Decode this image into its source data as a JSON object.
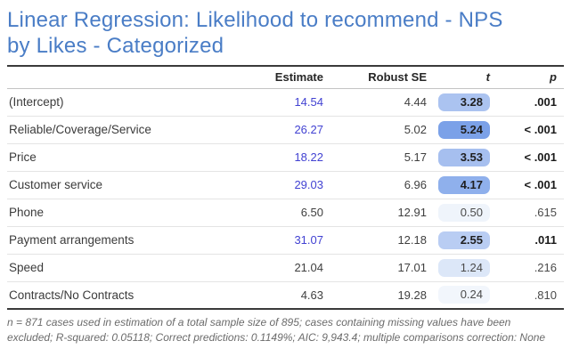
{
  "colors": {
    "title_blue": "#4a7dc6",
    "estimate_blue": "#4242d2",
    "rule_dark": "#3a3a3a",
    "rule_header": "#c4c4c4",
    "rule_row": "#e4e4e4"
  },
  "title": {
    "line1": "Linear Regression: Likelihood to recommend - NPS",
    "line2": "by Likes - Categorized"
  },
  "table": {
    "headers": {
      "estimate": "Estimate",
      "robust_se": "Robust SE",
      "t": "t",
      "p": "p"
    },
    "rows": [
      {
        "label": "(Intercept)",
        "estimate": "14.54",
        "estimate_blue": true,
        "robust_se": "4.44",
        "t": "3.28",
        "t_bg": "#abc3f0",
        "p": ".001",
        "significant": true
      },
      {
        "label": "Reliable/Coverage/Service",
        "estimate": "26.27",
        "estimate_blue": true,
        "robust_se": "5.02",
        "t": "5.24",
        "t_bg": "#7ba1e8",
        "p": "< .001",
        "significant": true
      },
      {
        "label": "Price",
        "estimate": "18.22",
        "estimate_blue": true,
        "robust_se": "5.17",
        "t": "3.53",
        "t_bg": "#a6bfef",
        "p": "< .001",
        "significant": true
      },
      {
        "label": "Customer service",
        "estimate": "29.03",
        "estimate_blue": true,
        "robust_se": "6.96",
        "t": "4.17",
        "t_bg": "#8fb0ec",
        "p": "< .001",
        "significant": true
      },
      {
        "label": "Phone",
        "estimate": "6.50",
        "estimate_blue": false,
        "robust_se": "12.91",
        "t": "0.50",
        "t_bg": "#eff4fb",
        "p": ".615",
        "significant": false
      },
      {
        "label": "Payment arrangements",
        "estimate": "31.07",
        "estimate_blue": true,
        "robust_se": "12.18",
        "t": "2.55",
        "t_bg": "#b9cdf3",
        "p": ".011",
        "significant": true
      },
      {
        "label": "Speed",
        "estimate": "21.04",
        "estimate_blue": false,
        "robust_se": "17.01",
        "t": "1.24",
        "t_bg": "#dce7f8",
        "p": ".216",
        "significant": false
      },
      {
        "label": "Contracts/No Contracts",
        "estimate": "4.63",
        "estimate_blue": false,
        "robust_se": "19.28",
        "t": "0.24",
        "t_bg": "#f2f6fc",
        "p": ".810",
        "significant": false
      }
    ]
  },
  "footnote": {
    "line1": "n = 871 cases used in estimation of a total sample size of 895; cases containing missing values have been",
    "line2": "excluded; R-squared: 0.05118; Correct predictions: 0.1149%; AIC: 9,943.4; multiple comparisons correction: None"
  },
  "chart_data": {
    "type": "table",
    "title": "Linear Regression: Likelihood to recommend - NPS by Likes - Categorized",
    "columns": [
      "",
      "Estimate",
      "Robust SE",
      "t",
      "p"
    ],
    "rows": [
      [
        "(Intercept)",
        14.54,
        4.44,
        3.28,
        ".001"
      ],
      [
        "Reliable/Coverage/Service",
        26.27,
        5.02,
        5.24,
        "< .001"
      ],
      [
        "Price",
        18.22,
        5.17,
        3.53,
        "< .001"
      ],
      [
        "Customer service",
        29.03,
        6.96,
        4.17,
        "< .001"
      ],
      [
        "Phone",
        6.5,
        12.91,
        0.5,
        ".615"
      ],
      [
        "Payment arrangements",
        31.07,
        12.18,
        2.55,
        ".011"
      ],
      [
        "Speed",
        21.04,
        17.01,
        1.24,
        ".216"
      ],
      [
        "Contracts/No Contracts",
        4.63,
        19.28,
        0.24,
        ".810"
      ]
    ],
    "annotations": "t-value cells shaded blue proportional to magnitude; significant estimates shown in blue; footnote: n = 871 cases used in estimation of a total sample size of 895; cases containing missing values have been excluded; R-squared: 0.05118; Correct predictions: 0.1149%; AIC: 9,943.4; multiple comparisons correction: None"
  }
}
